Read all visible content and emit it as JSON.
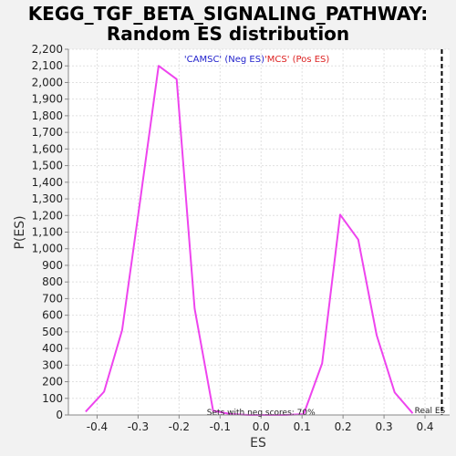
{
  "chart_data": {
    "type": "line",
    "title_line1": "KEGG_TGF_BETA_SIGNALING_PATHWAY:",
    "title_line2": "Random ES distribution",
    "xlabel": "ES",
    "ylabel": "P(ES)",
    "xlim": [
      -0.47,
      0.46
    ],
    "ylim": [
      0,
      2200
    ],
    "x_ticks": [
      -0.4,
      -0.3,
      -0.2,
      -0.1,
      0.0,
      0.1,
      0.2,
      0.3,
      0.4
    ],
    "x_tick_labels": [
      "-0.4",
      "-0.3",
      "-0.2",
      "-0.1",
      "0.0",
      "0.1",
      "0.2",
      "0.3",
      "0.4"
    ],
    "y_ticks": [
      0,
      100,
      200,
      300,
      400,
      500,
      600,
      700,
      800,
      900,
      1000,
      1100,
      1200,
      1300,
      1400,
      1500,
      1600,
      1700,
      1800,
      1900,
      2000,
      2100,
      2200
    ],
    "y_tick_labels": [
      "0",
      "100",
      "200",
      "300",
      "400",
      "500",
      "600",
      "700",
      "800",
      "900",
      "1,000",
      "1,100",
      "1,200",
      "1,300",
      "1,400",
      "1,500",
      "1,600",
      "1,700",
      "1,800",
      "1,900",
      "2,000",
      "2,100",
      "2,200"
    ],
    "grid": true,
    "series": [
      {
        "color": "#ee44ee",
        "x": [
          -0.428,
          -0.383,
          -0.339,
          -0.295,
          -0.25,
          -0.206,
          -0.162,
          -0.117,
          -0.073,
          -0.029,
          0.016,
          0.06,
          0.104,
          0.149,
          0.193,
          0.237,
          0.282,
          0.326,
          0.37
        ],
        "y": [
          20,
          140,
          510,
          1290,
          2100,
          2020,
          640,
          25,
          5,
          0,
          0,
          0,
          5,
          310,
          1205,
          1055,
          480,
          135,
          10
        ]
      }
    ],
    "legend": {
      "placement": "top-center",
      "neg_label": "'CAMSC' (Neg ES)",
      "pos_label": "'MCS' (Pos ES)",
      "neg_color": "#2222cc",
      "pos_color": "#dd2222"
    },
    "real_es": {
      "x": 0.441,
      "label": "Real ES"
    },
    "annotation": "Sets with neg scores: 70%"
  }
}
